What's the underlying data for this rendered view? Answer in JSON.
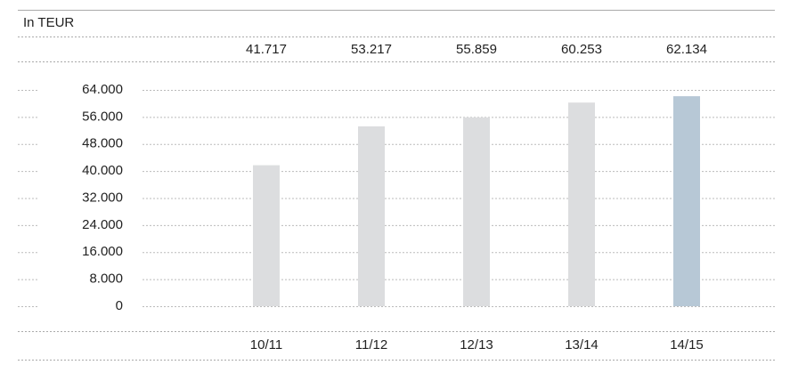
{
  "chart_data": {
    "type": "bar",
    "unit_label": "In TEUR",
    "categories": [
      "10/11",
      "11/12",
      "12/13",
      "13/14",
      "14/15"
    ],
    "values": [
      41717,
      53217,
      55859,
      60253,
      62134
    ],
    "value_labels": [
      "41.717",
      "53.217",
      "55.859",
      "60.253",
      "62.134"
    ],
    "colors": [
      "#dcdddf",
      "#dcdddf",
      "#dcdddf",
      "#dcdddf",
      "#b7c8d6"
    ],
    "ylim": [
      0,
      64000
    ],
    "yticks": [
      0,
      {
        "value": 8000,
        "label": "8.000"
      },
      {
        "value": 16000,
        "label": "16.000"
      },
      {
        "value": 24000,
        "label": "24.000"
      },
      {
        "value": 32000,
        "label": "32.000"
      },
      {
        "value": 40000,
        "label": "40.000"
      },
      {
        "value": 48000,
        "label": "48.000"
      },
      {
        "value": 56000,
        "label": "56.000"
      },
      {
        "value": 64000,
        "label": "64.000"
      }
    ],
    "grid": true
  }
}
